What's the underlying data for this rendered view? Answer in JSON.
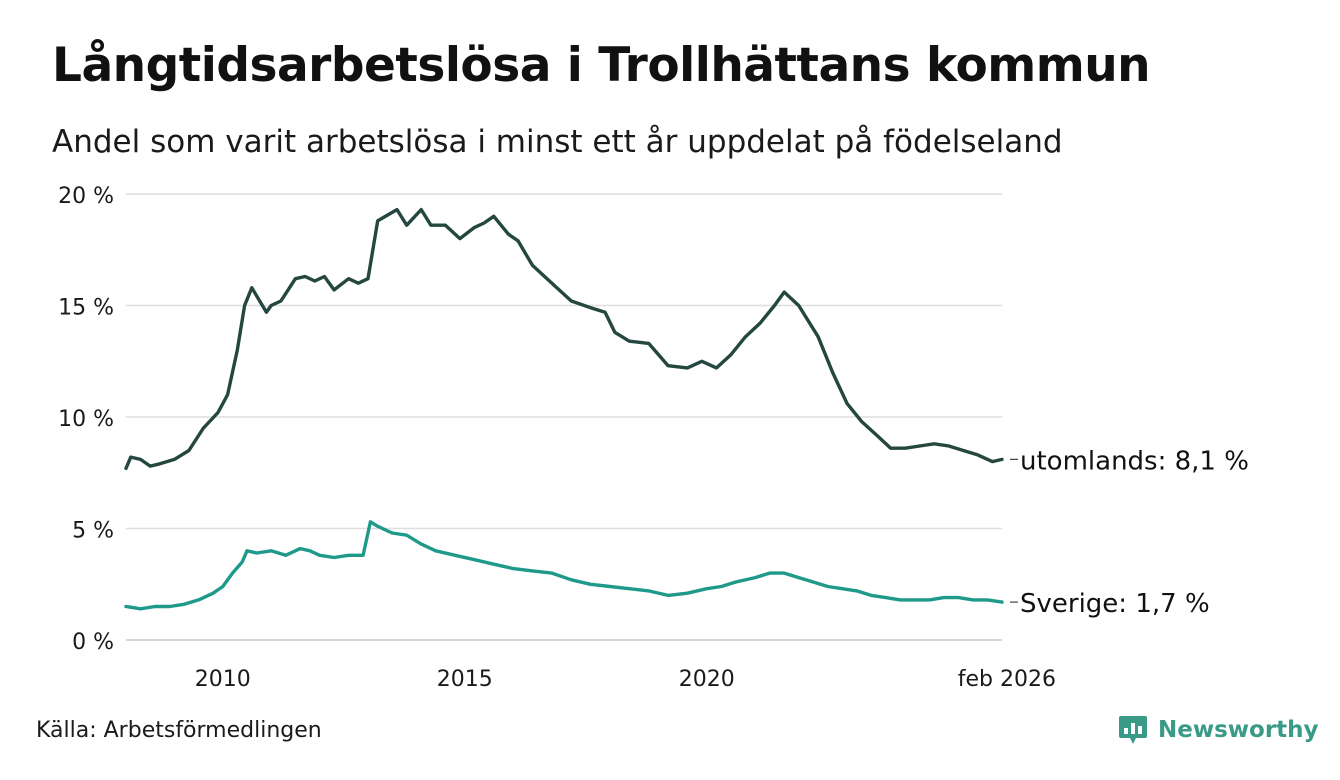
{
  "title": "Långtidsarbetslösa i Trollhättans kommun",
  "subtitle": "Andel som varit arbetslösa i minst ett år uppdelat på födelseland",
  "source": "Källa: Arbetsförmedlingen",
  "brand": {
    "name": "Newsworthy",
    "icon": "newsworthy-logo-icon",
    "color": "#3a9a88"
  },
  "chart_data": {
    "type": "line",
    "y_ticks": [
      {
        "value": 0,
        "label": "0 %"
      },
      {
        "value": 5,
        "label": "5 %"
      },
      {
        "value": 10,
        "label": "10 %"
      },
      {
        "value": 15,
        "label": "15 %"
      },
      {
        "value": 20,
        "label": "20 %"
      }
    ],
    "x_ticks": [
      {
        "value": 2010,
        "label": "2010"
      },
      {
        "value": 2015,
        "label": "2015"
      },
      {
        "value": 2020,
        "label": "2020"
      },
      {
        "value": 2026.1,
        "label": "feb 2026"
      }
    ],
    "xlim": [
      2008.0,
      2026.1
    ],
    "ylim": [
      0,
      20
    ],
    "grid": true,
    "series": [
      {
        "name": "utomlands",
        "end_label": "utomlands: 8,1 %",
        "color": "#24473f",
        "x": [
          2008.0,
          2008.1,
          2008.3,
          2008.5,
          2008.7,
          2009.0,
          2009.3,
          2009.6,
          2009.9,
          2010.1,
          2010.3,
          2010.45,
          2010.6,
          2010.9,
          2011.0,
          2011.2,
          2011.5,
          2011.7,
          2011.9,
          2012.1,
          2012.3,
          2012.6,
          2012.8,
          2013.0,
          2013.2,
          2013.6,
          2013.8,
          2014.1,
          2014.3,
          2014.6,
          2014.9,
          2015.2,
          2015.4,
          2015.6,
          2015.9,
          2016.1,
          2016.4,
          2016.8,
          2017.2,
          2017.6,
          2017.9,
          2018.1,
          2018.4,
          2018.8,
          2019.2,
          2019.6,
          2019.9,
          2020.2,
          2020.5,
          2020.8,
          2021.1,
          2021.4,
          2021.6,
          2021.9,
          2022.3,
          2022.6,
          2022.9,
          2023.2,
          2023.5,
          2023.8,
          2024.1,
          2024.4,
          2024.7,
          2025.0,
          2025.3,
          2025.6,
          2025.9,
          2026.1
        ],
        "values": [
          7.7,
          8.2,
          8.1,
          7.8,
          7.9,
          8.1,
          8.5,
          9.5,
          10.2,
          11.0,
          13.0,
          15.0,
          15.8,
          14.7,
          15.0,
          15.2,
          16.2,
          16.3,
          16.1,
          16.3,
          15.7,
          16.2,
          16.0,
          16.2,
          18.8,
          19.3,
          18.6,
          19.3,
          18.6,
          18.6,
          18.0,
          18.5,
          18.7,
          19.0,
          18.2,
          17.9,
          16.8,
          16.0,
          15.2,
          14.9,
          14.7,
          13.8,
          13.4,
          13.3,
          12.3,
          12.2,
          12.5,
          12.2,
          12.8,
          13.6,
          14.2,
          15.0,
          15.6,
          15.0,
          13.6,
          12.0,
          10.6,
          9.8,
          9.2,
          8.6,
          8.6,
          8.7,
          8.8,
          8.7,
          8.5,
          8.3,
          8.0,
          8.1
        ]
      },
      {
        "name": "Sverige",
        "end_label": "Sverige: 1,7 %",
        "color": "#1f9a8a",
        "x": [
          2008.0,
          2008.3,
          2008.6,
          2008.9,
          2009.2,
          2009.5,
          2009.8,
          2010.0,
          2010.2,
          2010.4,
          2010.5,
          2010.7,
          2011.0,
          2011.3,
          2011.6,
          2011.8,
          2012.0,
          2012.3,
          2012.6,
          2012.9,
          2013.05,
          2013.2,
          2013.5,
          2013.8,
          2014.1,
          2014.4,
          2014.8,
          2015.2,
          2015.6,
          2016.0,
          2016.4,
          2016.8,
          2017.2,
          2017.6,
          2018.0,
          2018.4,
          2018.8,
          2019.2,
          2019.6,
          2020.0,
          2020.3,
          2020.6,
          2021.0,
          2021.3,
          2021.6,
          2021.9,
          2022.2,
          2022.5,
          2022.8,
          2023.1,
          2023.4,
          2023.7,
          2024.0,
          2024.3,
          2024.6,
          2024.9,
          2025.2,
          2025.5,
          2025.8,
          2026.1
        ],
        "values": [
          1.5,
          1.4,
          1.5,
          1.5,
          1.6,
          1.8,
          2.1,
          2.4,
          3.0,
          3.5,
          4.0,
          3.9,
          4.0,
          3.8,
          4.1,
          4.0,
          3.8,
          3.7,
          3.8,
          3.8,
          5.3,
          5.1,
          4.8,
          4.7,
          4.3,
          4.0,
          3.8,
          3.6,
          3.4,
          3.2,
          3.1,
          3.0,
          2.7,
          2.5,
          2.4,
          2.3,
          2.2,
          2.0,
          2.1,
          2.3,
          2.4,
          2.6,
          2.8,
          3.0,
          3.0,
          2.8,
          2.6,
          2.4,
          2.3,
          2.2,
          2.0,
          1.9,
          1.8,
          1.8,
          1.8,
          1.9,
          1.9,
          1.8,
          1.8,
          1.7
        ]
      }
    ]
  }
}
